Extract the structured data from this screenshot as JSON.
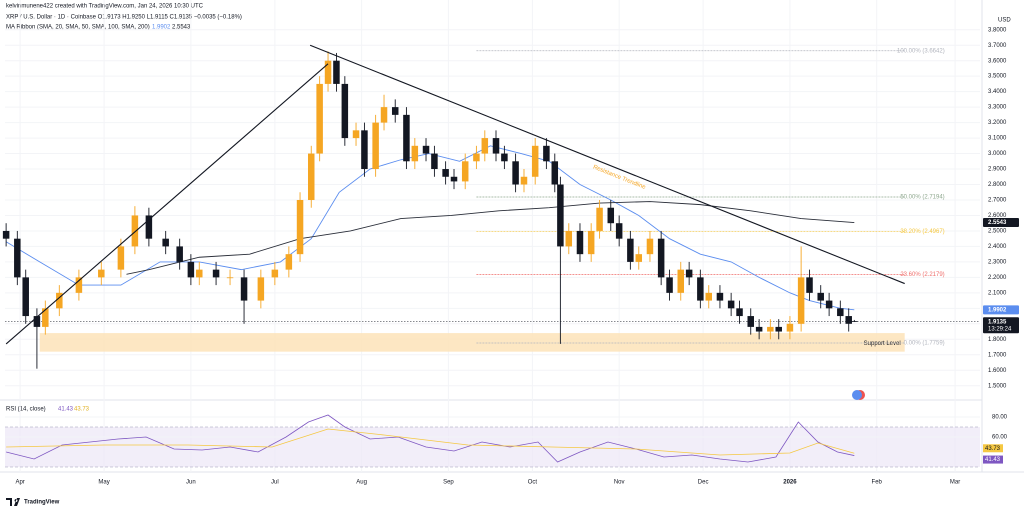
{
  "chart_data": [
    {
      "type": "candlestick",
      "subtitle": "kelvinmunene422 created with TradingView.com, Jan 24, 2026 10:30 UTC",
      "title": "XRP / U.S. Dollar · 1D · Coinbase  O1.9173  H1.9250  L1.9115  C1.9135  −0.0035 (−0.18%)",
      "indicator_label": "MA Ribbon (SMA, 20, SMA, 50, SMA, 100, SMA, 200)",
      "currency": "USD",
      "up_color": "#f5a623",
      "down_color": "#131722",
      "xlim": [
        -5.4,
        342.9
      ],
      "xticks": [
        {
          "value": 0,
          "label": "Apr"
        },
        {
          "value": 30,
          "label": "May"
        },
        {
          "value": 61,
          "label": "Jun"
        },
        {
          "value": 91,
          "label": "Jul"
        },
        {
          "value": 122,
          "label": "Aug"
        },
        {
          "value": 153,
          "label": "Sep"
        },
        {
          "value": 183,
          "label": "Oct"
        },
        {
          "value": 214,
          "label": "Nov"
        },
        {
          "value": 244,
          "label": "Dec"
        },
        {
          "value": 275,
          "label": "2026"
        },
        {
          "value": 306,
          "label": "Feb"
        },
        {
          "value": 334,
          "label": "Mar"
        }
      ],
      "ylim": [
        1.44,
        3.85
      ],
      "yticks": [
        {
          "value": 3.8,
          "label": "3.8000"
        },
        {
          "value": 3.7,
          "label": "3.7000"
        },
        {
          "value": 3.6,
          "label": "3.6000"
        },
        {
          "value": 3.5,
          "label": "3.5000"
        },
        {
          "value": 3.4,
          "label": "3.4000"
        },
        {
          "value": 3.3,
          "label": "3.3000"
        },
        {
          "value": 3.2,
          "label": "3.2000"
        },
        {
          "value": 3.1,
          "label": "3.1000"
        },
        {
          "value": 3.0,
          "label": "3.0000"
        },
        {
          "value": 2.9,
          "label": "2.9000"
        },
        {
          "value": 2.8,
          "label": "2.8000"
        },
        {
          "value": 2.7,
          "label": "2.7000"
        },
        {
          "value": 2.6,
          "label": "2.6000"
        },
        {
          "value": 2.5,
          "label": "2.5000"
        },
        {
          "value": 2.4,
          "label": "2.4000"
        },
        {
          "value": 2.3,
          "label": "2.3000"
        },
        {
          "value": 2.2,
          "label": "2.2000"
        },
        {
          "value": 2.1,
          "label": "2.1000"
        },
        {
          "value": 2.0,
          "label": "2.0000"
        },
        {
          "value": 1.9,
          "label": "1.9000"
        },
        {
          "value": 1.8,
          "label": "1.8000"
        },
        {
          "value": 1.7,
          "label": "1.7000"
        },
        {
          "value": 1.6,
          "label": "1.6000"
        },
        {
          "value": 1.5,
          "label": "1.5000"
        }
      ],
      "candles": {
        "x": [
          -5,
          -1,
          2,
          6,
          9,
          14,
          21,
          29,
          36,
          41,
          46,
          52,
          57,
          61,
          64,
          70,
          75,
          80,
          86,
          91,
          96,
          100,
          104,
          107,
          110,
          113,
          116,
          120,
          123,
          127,
          130,
          134,
          138,
          141,
          145,
          148,
          152,
          155,
          159,
          163,
          166,
          170,
          173,
          177,
          180,
          184,
          188,
          191,
          193,
          196,
          200,
          204,
          207,
          211,
          214,
          218,
          221,
          225,
          229,
          232,
          236,
          239,
          243,
          246,
          250,
          254,
          257,
          261,
          264,
          268,
          271,
          275,
          279,
          282,
          286,
          289,
          293,
          296,
          298
        ],
        "open": [
          2.5,
          2.45,
          2.2,
          1.95,
          1.88,
          2.0,
          2.1,
          2.2,
          2.25,
          2.4,
          2.6,
          2.45,
          2.4,
          2.3,
          2.2,
          2.25,
          2.2,
          2.2,
          2.05,
          2.2,
          2.25,
          2.35,
          2.7,
          3.0,
          3.45,
          3.6,
          3.45,
          3.1,
          3.15,
          2.9,
          3.2,
          3.3,
          3.25,
          2.95,
          3.05,
          3.0,
          2.9,
          2.85,
          2.82,
          2.95,
          3.0,
          3.1,
          3.0,
          2.95,
          2.8,
          2.85,
          3.05,
          2.95,
          2.8,
          2.4,
          2.5,
          2.35,
          2.5,
          2.65,
          2.55,
          2.45,
          2.3,
          2.35,
          2.45,
          2.2,
          2.1,
          2.25,
          2.2,
          2.05,
          2.1,
          2.05,
          2.0,
          1.95,
          1.88,
          1.85,
          1.88,
          1.85,
          1.9,
          2.2,
          2.1,
          2.05,
          2.0,
          1.95,
          1.9173
        ],
        "high": [
          2.55,
          2.5,
          2.25,
          2.0,
          2.05,
          2.15,
          2.25,
          2.3,
          2.45,
          2.66,
          2.65,
          2.5,
          2.45,
          2.35,
          2.3,
          2.3,
          2.25,
          2.25,
          2.25,
          2.3,
          2.4,
          2.75,
          3.05,
          3.5,
          3.66,
          3.65,
          3.5,
          3.2,
          3.2,
          3.25,
          3.38,
          3.35,
          3.3,
          3.1,
          3.1,
          3.05,
          2.95,
          2.9,
          3.0,
          3.05,
          3.15,
          3.15,
          3.05,
          3.0,
          2.9,
          3.1,
          3.1,
          3.0,
          2.85,
          2.55,
          2.55,
          2.55,
          2.7,
          2.7,
          2.6,
          2.5,
          2.4,
          2.5,
          2.5,
          2.25,
          2.3,
          2.3,
          2.25,
          2.15,
          2.15,
          2.1,
          2.05,
          2.0,
          1.93,
          1.93,
          1.93,
          1.95,
          2.4,
          2.25,
          2.15,
          2.1,
          2.05,
          2.0,
          1.925
        ],
        "low": [
          2.4,
          2.15,
          1.9,
          1.61,
          1.83,
          1.95,
          2.05,
          2.15,
          2.2,
          2.35,
          2.4,
          2.35,
          2.25,
          2.15,
          2.15,
          2.15,
          2.15,
          1.9,
          2.0,
          2.15,
          2.2,
          2.3,
          2.65,
          2.95,
          3.4,
          3.4,
          3.05,
          3.05,
          2.85,
          2.85,
          3.15,
          3.2,
          2.9,
          2.9,
          2.95,
          2.85,
          2.8,
          2.77,
          2.77,
          2.9,
          2.95,
          2.95,
          2.9,
          2.75,
          2.75,
          2.8,
          2.9,
          2.75,
          1.77,
          2.35,
          2.3,
          2.3,
          2.45,
          2.5,
          2.4,
          2.25,
          2.25,
          2.3,
          2.15,
          2.05,
          2.05,
          2.15,
          2.0,
          2.0,
          2.0,
          1.95,
          1.9,
          1.83,
          1.8,
          1.8,
          1.8,
          1.8,
          1.85,
          2.05,
          2.0,
          1.95,
          1.9,
          1.85,
          1.9115
        ],
        "close": [
          2.45,
          2.2,
          1.95,
          1.88,
          2.0,
          2.1,
          2.2,
          2.25,
          2.4,
          2.6,
          2.45,
          2.4,
          2.3,
          2.2,
          2.25,
          2.2,
          2.2,
          2.05,
          2.2,
          2.25,
          2.35,
          2.7,
          3.0,
          3.45,
          3.6,
          3.45,
          3.1,
          3.15,
          2.9,
          3.2,
          3.3,
          3.25,
          2.95,
          3.05,
          3.0,
          2.9,
          2.85,
          2.82,
          2.95,
          3.0,
          3.1,
          3.0,
          2.95,
          2.8,
          2.85,
          3.05,
          2.95,
          2.8,
          2.4,
          2.5,
          2.35,
          2.5,
          2.65,
          2.55,
          2.45,
          2.3,
          2.35,
          2.45,
          2.2,
          2.1,
          2.25,
          2.2,
          2.05,
          2.1,
          2.05,
          2.0,
          1.95,
          1.88,
          1.85,
          1.88,
          1.85,
          1.9,
          2.2,
          2.1,
          2.05,
          2.0,
          1.95,
          1.9,
          1.9135
        ]
      },
      "series": [
        {
          "color": "#5b8def",
          "x": [
            -5,
            7,
            21,
            36,
            50,
            64,
            79,
            93,
            104,
            114,
            125,
            136,
            146,
            157,
            168,
            179,
            189,
            200,
            211,
            221,
            232,
            243,
            254,
            264,
            275,
            282,
            293,
            298
          ],
          "values": [
            2.43,
            2.3,
            2.15,
            2.15,
            2.3,
            2.3,
            2.25,
            2.3,
            2.45,
            2.75,
            2.9,
            2.96,
            3.0,
            2.95,
            3.05,
            3.0,
            2.95,
            2.8,
            2.7,
            2.6,
            2.45,
            2.35,
            2.3,
            2.2,
            2.1,
            2.05,
            2.0,
            1.9902
          ]
        },
        {
          "color": "#2a2e39",
          "x": [
            38,
            46,
            64,
            82,
            100,
            118,
            136,
            154,
            171,
            189,
            207,
            225,
            243,
            261,
            279,
            298
          ],
          "values": [
            2.22,
            2.25,
            2.33,
            2.35,
            2.45,
            2.5,
            2.58,
            2.6,
            2.63,
            2.65,
            2.68,
            2.69,
            2.67,
            2.63,
            2.58,
            2.5543
          ]
        }
      ],
      "markers": [
        {
          "value": 1.9902,
          "color": "#5b8def"
        },
        {
          "value": 2.5543,
          "color": "#131722"
        },
        {
          "value": 1.9135,
          "color": "#131722",
          "countdown": "13:29:24"
        }
      ],
      "fib": [
        {
          "value": 3.6642,
          "label": "100.00% (3.6642)",
          "color": "#b2b5be"
        },
        {
          "value": 2.7194,
          "label": "50.00% (2.7194)",
          "color": "#8fa88f"
        },
        {
          "value": 2.4967,
          "label": "38.20% (2.4967)",
          "color": "#f5c842"
        },
        {
          "value": 2.2179,
          "label": "23.60% (2.2179)",
          "color": "#ef6f6c"
        },
        {
          "value": 1.7759,
          "label": "0.00% (1.7759)",
          "color": "#b2b5be"
        }
      ],
      "fib_x": [
        163,
        316
      ],
      "trendlines": [
        {
          "x": [
            103.6,
            316
          ],
          "y": [
            3.7,
            2.16
          ],
          "label": "Resistance Trendline"
        },
        {
          "x": [
            -5,
            110
          ],
          "y": [
            1.77,
            3.58
          ]
        }
      ],
      "support_zone": {
        "label": "Support Level",
        "x": [
          7,
          316
        ],
        "range": [
          1.72,
          1.84
        ]
      }
    },
    {
      "type": "line",
      "title": "RSI (14, close)",
      "xlim": [
        -5.4,
        342.9
      ],
      "ylim": [
        27,
        92
      ],
      "yticks": [
        {
          "value": 80,
          "label": "80.00"
        },
        {
          "value": 60,
          "label": "60.00"
        }
      ],
      "band": [
        30,
        70
      ],
      "series": [
        {
          "color": "#7e57c2",
          "x": [
            -5,
            5,
            15,
            25,
            35,
            45,
            55,
            65,
            75,
            85,
            95,
            103,
            110,
            116,
            125,
            135,
            145,
            155,
            165,
            175,
            185,
            192,
            200,
            210,
            220,
            230,
            240,
            250,
            260,
            270,
            278,
            285,
            292,
            298
          ],
          "values": [
            45,
            38,
            52,
            55,
            58,
            60,
            48,
            47,
            50,
            45,
            60,
            75,
            82,
            70,
            58,
            60,
            50,
            46,
            55,
            50,
            55,
            35,
            45,
            55,
            48,
            40,
            42,
            38,
            35,
            40,
            75,
            55,
            45,
            41.43
          ]
        },
        {
          "color": "#f5c842",
          "x": [
            -5,
            30,
            60,
            90,
            110,
            130,
            160,
            190,
            220,
            250,
            275,
            285,
            298
          ],
          "values": [
            50,
            52,
            52,
            50,
            68,
            62,
            52,
            50,
            48,
            42,
            44,
            54,
            43.73
          ]
        }
      ]
    }
  ],
  "footer": {
    "brand": "TradingView"
  }
}
